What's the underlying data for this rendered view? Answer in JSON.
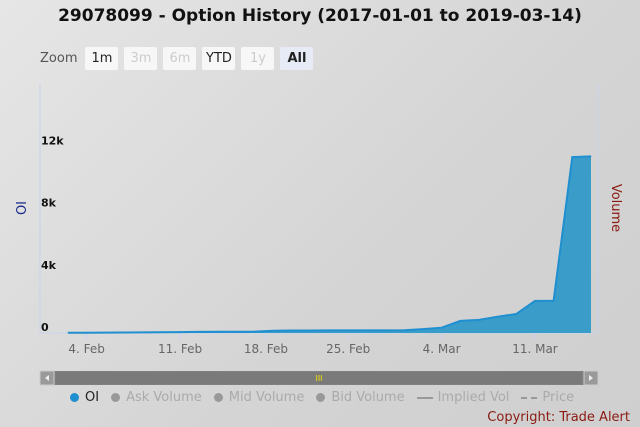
{
  "title": "29078099 - Option History (2017-01-01 to 2019-03-14)",
  "zoom": {
    "label": "Zoom",
    "buttons": [
      {
        "label": "1m",
        "state": "normal"
      },
      {
        "label": "3m",
        "state": "disabled"
      },
      {
        "label": "6m",
        "state": "disabled"
      },
      {
        "label": "YTD",
        "state": "normal"
      },
      {
        "label": "1y",
        "state": "disabled"
      },
      {
        "label": "All",
        "state": "active"
      }
    ]
  },
  "legend": [
    {
      "label": "OI",
      "type": "dot",
      "color": "#1f8fd0",
      "active": true
    },
    {
      "label": "Ask Volume",
      "type": "dot",
      "active": false
    },
    {
      "label": "Mid Volume",
      "type": "dot",
      "active": false
    },
    {
      "label": "Bid Volume",
      "type": "dot",
      "active": false
    },
    {
      "label": "Implied Vol",
      "type": "line",
      "active": false
    },
    {
      "label": "Price",
      "type": "dash",
      "active": false
    }
  ],
  "copyright": "Copyright: Trade Alert",
  "colors": {
    "series": "#1f8fd0",
    "fill": "#3a9cc9",
    "left_axis": "#1a2a8a",
    "right_axis": "#8b1a10"
  },
  "chart_data": {
    "type": "area",
    "ylabel": "OI",
    "y2label": "Volume",
    "ylim": [
      0,
      16000
    ],
    "yticks": [
      {
        "v": 0,
        "label": "0"
      },
      {
        "v": 4000,
        "label": "4k"
      },
      {
        "v": 8000,
        "label": "8k"
      },
      {
        "v": 12000,
        "label": "12k"
      }
    ],
    "xticks": [
      {
        "i": 1,
        "label": "4. Feb"
      },
      {
        "i": 6,
        "label": "11. Feb"
      },
      {
        "i": 10.6,
        "label": "18. Feb"
      },
      {
        "i": 15,
        "label": "25. Feb"
      },
      {
        "i": 20,
        "label": "4. Mar"
      },
      {
        "i": 25,
        "label": "11. Mar"
      }
    ],
    "series": [
      {
        "name": "OI",
        "x": [
          "2019-02-01",
          "2019-02-04",
          "2019-02-05",
          "2019-02-06",
          "2019-02-07",
          "2019-02-08",
          "2019-02-11",
          "2019-02-12",
          "2019-02-13",
          "2019-02-14",
          "2019-02-15",
          "2019-02-19",
          "2019-02-20",
          "2019-02-21",
          "2019-02-22",
          "2019-02-25",
          "2019-02-26",
          "2019-02-27",
          "2019-02-28",
          "2019-03-01",
          "2019-03-04",
          "2019-03-05",
          "2019-03-06",
          "2019-03-07",
          "2019-03-08",
          "2019-03-11",
          "2019-03-12",
          "2019-03-13",
          "2019-03-14"
        ],
        "values": [
          20,
          20,
          25,
          30,
          40,
          50,
          60,
          70,
          80,
          80,
          90,
          150,
          160,
          160,
          170,
          170,
          170,
          170,
          180,
          250,
          340,
          780,
          840,
          1050,
          1220,
          2060,
          2060,
          11300,
          11350
        ]
      }
    ],
    "navigator": {
      "scrollbar_label": "III"
    }
  }
}
